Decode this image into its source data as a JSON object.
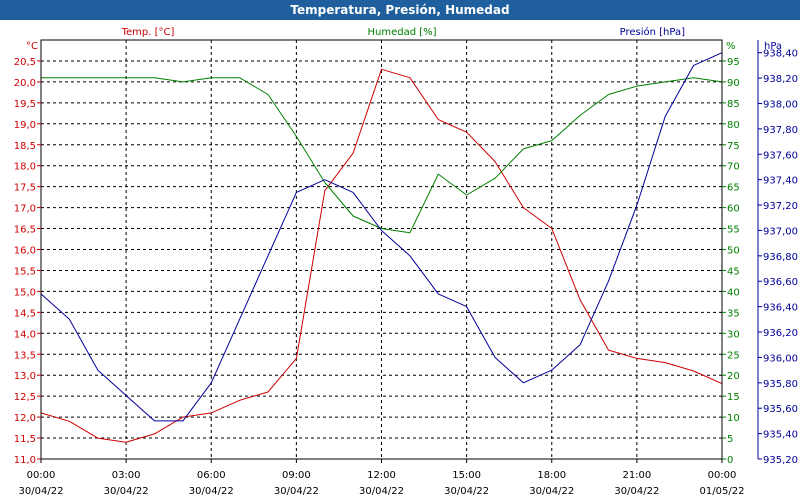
{
  "chart_data": {
    "type": "line",
    "title": "Temperatura, Presión, Humedad",
    "x_tick_labels": [
      {
        "time": "00:00",
        "date": "30/04/22"
      },
      {
        "time": "03:00",
        "date": "30/04/22"
      },
      {
        "time": "06:00",
        "date": "30/04/22"
      },
      {
        "time": "09:00",
        "date": "30/04/22"
      },
      {
        "time": "12:00",
        "date": "30/04/22"
      },
      {
        "time": "15:00",
        "date": "30/04/22"
      },
      {
        "time": "18:00",
        "date": "30/04/22"
      },
      {
        "time": "21:00",
        "date": "30/04/22"
      },
      {
        "time": "00:00",
        "date": "01/05/22"
      }
    ],
    "x_hours": [
      0,
      1,
      2,
      3,
      4,
      5,
      6,
      7,
      8,
      9,
      10,
      11,
      12,
      13,
      14,
      15,
      16,
      17,
      18,
      19,
      20,
      21,
      22,
      23,
      24
    ],
    "xlim": [
      0,
      24
    ],
    "grid": true,
    "axes": {
      "temperature": {
        "label": "Temp. [°C]",
        "unit": "°C",
        "color": "#cc0000",
        "ylim": [
          11.0,
          21.0
        ],
        "ticks": [
          "11,0",
          "11,5",
          "12,0",
          "12,5",
          "13,0",
          "13,5",
          "14,0",
          "14,5",
          "15,0",
          "15,5",
          "16,0",
          "16,5",
          "17,0",
          "17,5",
          "18,0",
          "18,5",
          "19,0",
          "19,5",
          "20,0",
          "20,5"
        ]
      },
      "humidity": {
        "label": "Humedad [%]",
        "unit": "%",
        "color": "#008000",
        "ylim": [
          0,
          100
        ],
        "ticks": [
          "0",
          "5",
          "10",
          "15",
          "20",
          "25",
          "30",
          "35",
          "40",
          "45",
          "50",
          "55",
          "60",
          "65",
          "70",
          "75",
          "80",
          "85",
          "90",
          "95"
        ]
      },
      "pressure": {
        "label": "Presión [hPa]",
        "unit": "hPa",
        "color": "#000099",
        "ylim": [
          935.2,
          938.5
        ],
        "ticks": [
          "935,20",
          "935,40",
          "935,60",
          "935,80",
          "936,00",
          "936,20",
          "936,40",
          "936,60",
          "936,80",
          "937,00",
          "937,20",
          "937,40",
          "937,60",
          "937,80",
          "938,00",
          "938,20",
          "938,40"
        ]
      }
    },
    "series": [
      {
        "name": "Temp. [°C]",
        "axis": "temperature",
        "color": "#cc0000",
        "values": [
          12.1,
          11.9,
          11.5,
          11.4,
          11.6,
          12.0,
          12.1,
          12.4,
          12.6,
          13.4,
          17.4,
          18.3,
          20.3,
          20.1,
          19.1,
          18.8,
          18.1,
          17.0,
          16.5,
          14.8,
          13.6,
          13.4,
          13.3,
          13.1,
          12.8
        ]
      },
      {
        "name": "Humedad [%]",
        "axis": "humidity",
        "color": "#008000",
        "values": [
          91,
          91,
          91,
          91,
          91,
          90,
          91,
          91,
          87,
          77,
          66,
          58,
          55,
          54,
          68,
          63,
          67,
          74,
          76,
          82,
          87,
          89,
          90,
          91,
          90
        ]
      },
      {
        "name": "Presión [hPa]",
        "axis": "pressure",
        "color": "#000099",
        "values": [
          936.5,
          936.3,
          935.9,
          935.7,
          935.5,
          935.5,
          935.8,
          936.3,
          936.8,
          937.3,
          937.4,
          937.3,
          937.0,
          936.8,
          936.5,
          936.4,
          936.0,
          935.8,
          935.9,
          936.1,
          936.6,
          937.2,
          937.9,
          938.3,
          938.4
        ]
      }
    ]
  }
}
